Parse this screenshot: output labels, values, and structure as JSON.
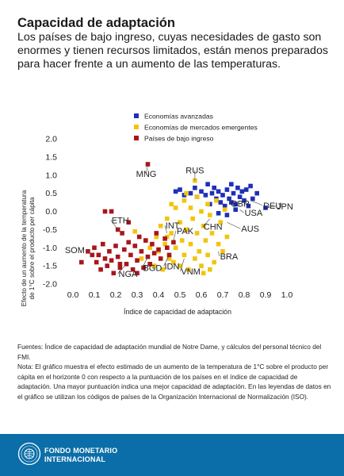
{
  "header": {
    "title": "Capacidad de adaptación",
    "subtitle": "Los países de bajo ingreso, cuyas necesidades de gasto son enormes y tienen recursos limitados, están menos preparados para hacer frente a un aumento de las temperaturas."
  },
  "chart_data": {
    "type": "scatter",
    "xlabel": "Índice de capacidad de adaptación",
    "ylabel": [
      "Efecto de un aumento de la temperatura",
      "de 1°C sobre el producto per cápita"
    ],
    "xlim": [
      0.0,
      1.0
    ],
    "ylim": [
      -2.0,
      2.0
    ],
    "xticks": [
      "0.0",
      "0.1",
      "0.2",
      "0.3",
      "0.4",
      "0.5",
      "0.6",
      "0.7",
      "0.8",
      "0.9",
      "1.0"
    ],
    "yticks": [
      "2.0",
      "1.5",
      "1.0",
      "0.5",
      "0.0",
      "-0.5",
      "-1.0",
      "-1.5",
      "-2.0"
    ],
    "grid": false,
    "legend_position": "top",
    "series": [
      {
        "name": "Economías avanzadas",
        "color": "#1f2fb8",
        "points": [
          [
            0.48,
            0.55
          ],
          [
            0.5,
            0.6
          ],
          [
            0.52,
            0.45
          ],
          [
            0.55,
            0.5
          ],
          [
            0.57,
            0.65
          ],
          [
            0.58,
            0.4
          ],
          [
            0.6,
            0.55
          ],
          [
            0.62,
            0.45
          ],
          [
            0.63,
            0.75
          ],
          [
            0.65,
            0.5
          ],
          [
            0.66,
            0.65
          ],
          [
            0.67,
            0.35
          ],
          [
            0.68,
            0.55
          ],
          [
            0.69,
            0.25
          ],
          [
            0.7,
            0.45
          ],
          [
            0.71,
            0.15
          ],
          [
            0.72,
            0.6
          ],
          [
            0.73,
            0.35
          ],
          [
            0.74,
            0.75
          ],
          [
            0.75,
            0.5
          ],
          [
            0.76,
            0.2
          ],
          [
            0.76,
            0.05
          ],
          [
            0.77,
            0.65
          ],
          [
            0.78,
            0.4
          ],
          [
            0.79,
            0.55
          ],
          [
            0.8,
            0.3
          ],
          [
            0.81,
            0.6
          ],
          [
            0.82,
            0.15
          ],
          [
            0.84,
            0.35
          ],
          [
            0.86,
            0.5
          ],
          [
            0.9,
            0.1
          ],
          [
            0.68,
            -0.05
          ],
          [
            0.72,
            -0.1
          ],
          [
            0.74,
            0.25
          ],
          [
            0.83,
            0.7
          ],
          [
            0.64,
            0.2
          ]
        ]
      },
      {
        "name": "Economías de mercados emergentes",
        "color": "#f2c40f",
        "points": [
          [
            0.29,
            -0.55
          ],
          [
            0.32,
            -1.3
          ],
          [
            0.34,
            -0.8
          ],
          [
            0.36,
            -1.0
          ],
          [
            0.38,
            -1.5
          ],
          [
            0.39,
            -0.7
          ],
          [
            0.4,
            -1.1
          ],
          [
            0.41,
            -0.4
          ],
          [
            0.42,
            -1.6
          ],
          [
            0.43,
            -0.9
          ],
          [
            0.44,
            -0.2
          ],
          [
            0.45,
            -1.3
          ],
          [
            0.46,
            -0.6
          ],
          [
            0.47,
            -1.4
          ],
          [
            0.48,
            0.1
          ],
          [
            0.48,
            -1.0
          ],
          [
            0.5,
            -0.3
          ],
          [
            0.5,
            -1.5
          ],
          [
            0.51,
            -0.8
          ],
          [
            0.52,
            0.3
          ],
          [
            0.52,
            -1.2
          ],
          [
            0.53,
            -0.5
          ],
          [
            0.54,
            -1.6
          ],
          [
            0.55,
            0.1
          ],
          [
            0.55,
            -0.9
          ],
          [
            0.56,
            -0.2
          ],
          [
            0.57,
            -1.3
          ],
          [
            0.58,
            0.4
          ],
          [
            0.58,
            -0.6
          ],
          [
            0.59,
            -1.1
          ],
          [
            0.6,
            0.0
          ],
          [
            0.6,
            -1.5
          ],
          [
            0.61,
            -0.4
          ],
          [
            0.62,
            -0.8
          ],
          [
            0.63,
            0.2
          ],
          [
            0.63,
            -1.2
          ],
          [
            0.64,
            -0.1
          ],
          [
            0.65,
            -0.6
          ],
          [
            0.66,
            -1.4
          ],
          [
            0.67,
            0.3
          ],
          [
            0.68,
            -0.9
          ],
          [
            0.69,
            -0.3
          ],
          [
            0.7,
            -1.1
          ],
          [
            0.71,
            0.05
          ],
          [
            0.72,
            -0.7
          ],
          [
            0.57,
            0.85
          ],
          [
            0.53,
            0.5
          ],
          [
            0.46,
            0.2
          ],
          [
            0.44,
            -0.7
          ],
          [
            0.64,
            -1.6
          ],
          [
            0.61,
            -1.7
          ]
        ]
      },
      {
        "name": "Países de bajo ingreso",
        "color": "#a8161c",
        "points": [
          [
            0.04,
            -1.4
          ],
          [
            0.07,
            -1.1
          ],
          [
            0.09,
            -1.2
          ],
          [
            0.1,
            -1.0
          ],
          [
            0.11,
            -1.4
          ],
          [
            0.12,
            -1.2
          ],
          [
            0.13,
            -1.6
          ],
          [
            0.14,
            -0.9
          ],
          [
            0.15,
            -1.3
          ],
          [
            0.16,
            -1.5
          ],
          [
            0.17,
            -1.1
          ],
          [
            0.18,
            -1.35
          ],
          [
            0.19,
            -1.7
          ],
          [
            0.2,
            -0.95
          ],
          [
            0.21,
            -1.25
          ],
          [
            0.22,
            -1.55
          ],
          [
            0.23,
            -0.6
          ],
          [
            0.24,
            -1.05
          ],
          [
            0.25,
            -1.45
          ],
          [
            0.26,
            -0.85
          ],
          [
            0.27,
            -1.2
          ],
          [
            0.28,
            -1.6
          ],
          [
            0.29,
            -0.95
          ],
          [
            0.3,
            -1.35
          ],
          [
            0.31,
            -0.7
          ],
          [
            0.32,
            -1.1
          ],
          [
            0.33,
            -1.55
          ],
          [
            0.34,
            -0.8
          ],
          [
            0.35,
            -1.25
          ],
          [
            0.36,
            -1.45
          ],
          [
            0.37,
            -0.9
          ],
          [
            0.38,
            -1.15
          ],
          [
            0.39,
            -0.6
          ],
          [
            0.4,
            -1.05
          ],
          [
            0.41,
            -1.3
          ],
          [
            0.43,
            -0.75
          ],
          [
            0.44,
            -1.0
          ],
          [
            0.47,
            -0.85
          ],
          [
            0.15,
            0.0
          ],
          [
            0.18,
            0.0
          ],
          [
            0.21,
            -0.5
          ],
          [
            0.26,
            -0.3
          ],
          [
            0.35,
            1.3
          ],
          [
            0.22,
            -1.45
          ],
          [
            0.3,
            -1.7
          ],
          [
            0.45,
            -1.2
          ]
        ]
      }
    ],
    "annotations": [
      {
        "label": "MNG",
        "point": [
          0.35,
          1.3
        ]
      },
      {
        "label": "RUS",
        "point": [
          0.57,
          0.85
        ]
      },
      {
        "label": "GBR",
        "point": [
          0.73,
          0.35
        ]
      },
      {
        "label": "DEU",
        "point": [
          0.83,
          0.3
        ]
      },
      {
        "label": "USA",
        "point": [
          0.78,
          0.05
        ]
      },
      {
        "label": "JPN",
        "point": [
          0.9,
          0.1
        ]
      },
      {
        "label": "ETH",
        "point": [
          0.21,
          -0.5
        ]
      },
      {
        "label": "CHN",
        "point": [
          0.64,
          -0.2
        ]
      },
      {
        "label": "AUS",
        "point": [
          0.72,
          -0.3
        ]
      },
      {
        "label": "INT",
        "point": [
          0.44,
          -0.6
        ]
      },
      {
        "label": "PAK",
        "point": [
          0.47,
          -0.8
        ]
      },
      {
        "label": "SOM",
        "point": [
          0.07,
          -1.1
        ]
      },
      {
        "label": "BRA",
        "point": [
          0.68,
          -1.1
        ]
      },
      {
        "label": "NGA",
        "point": [
          0.25,
          -1.45
        ]
      },
      {
        "label": "BGD",
        "point": [
          0.35,
          -1.25
        ]
      },
      {
        "label": "IDN",
        "point": [
          0.45,
          -1.2
        ]
      },
      {
        "label": "VNM",
        "point": [
          0.52,
          -1.3
        ]
      }
    ]
  },
  "notes": {
    "sources": "Fuentes: Índice de capacidad de adaptación mundial de Notre Dame, y cálculos del personal técnico del FMI.",
    "note": "Nota: El gráfico muestra el efecto estimado de un aumento de la temperatura de 1°C sobre el producto per cápita en el horizonte 0 con respecto a la puntuación de los países en el índice de capacidad de adaptación. Una mayor puntuación indica una mejor capacidad de adaptación. En las leyendas de datos en el gráfico se utilizan los códigos de países de la Organización Internacional de Normalización (ISO)."
  },
  "footer": {
    "org_line1": "FONDO MONETARIO",
    "org_line2": "INTERNACIONAL",
    "background": "#0b6ea8"
  }
}
